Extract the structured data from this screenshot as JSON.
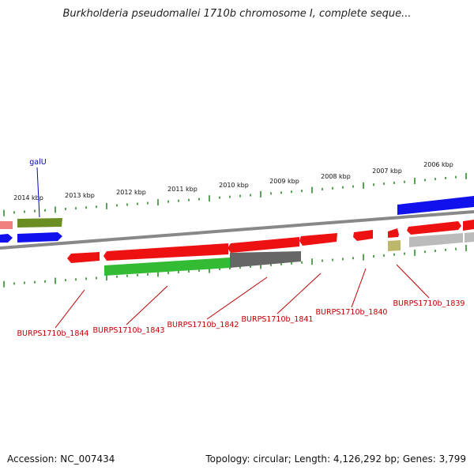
{
  "title": "Burkholderia pseudomallei 1710b chromosome I, complete seque...",
  "footer": {
    "accession": "Accession: NC_007434",
    "summary": "Topology: circular; Length: 4,126,292 bp; Genes: 3,799"
  },
  "colors": {
    "forward_red": "#ee1111",
    "blue": "#1111ee",
    "olive": "#6b8e23",
    "green": "#33bb33",
    "dark_gray": "#666666",
    "light_gray": "#bbbbbb",
    "pink": "#f08080",
    "khaki": "#bdb76b",
    "tick_green": "#2e8b2e",
    "backbone": "#888888"
  },
  "scale_labels": [
    "2014 kbp",
    "2013 kbp",
    "2012 kbp",
    "2011 kbp",
    "2010 kbp",
    "2009 kbp",
    "2008 kbp",
    "2007 kbp",
    "2006 kbp"
  ],
  "gene_labels": {
    "galU": "galU",
    "b1844": "BURPS1710b_1844",
    "b1843": "BURPS1710b_1843",
    "b1842": "BURPS1710b_1842",
    "b1841": "BURPS1710b_1841",
    "b1840": "BURPS1710b_1840",
    "b1839": "BURPS1710b_1839"
  }
}
